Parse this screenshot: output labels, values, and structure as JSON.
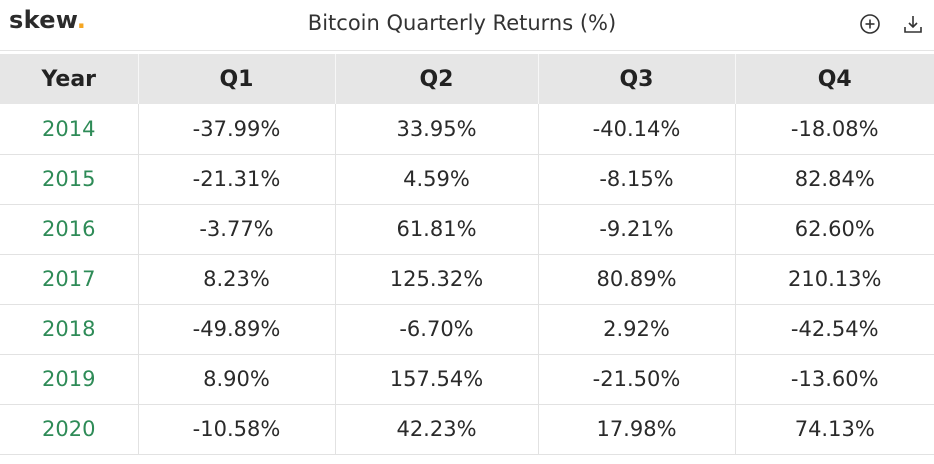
{
  "header": {
    "brand": "skew",
    "brand_dot": ".",
    "title": "Bitcoin Quarterly Returns (%)",
    "icons": [
      "add-circle-icon",
      "download-icon"
    ]
  },
  "colors": {
    "year_text": "#2e8b57",
    "header_row_bg": "#e6e6e6",
    "brand_dot": "#f5a623"
  },
  "chart_data": {
    "type": "table",
    "title": "Bitcoin Quarterly Returns (%)",
    "columns": [
      "Year",
      "Q1",
      "Q2",
      "Q3",
      "Q4"
    ],
    "rows": [
      [
        "2014",
        "-37.99%",
        "33.95%",
        "-40.14%",
        "-18.08%"
      ],
      [
        "2015",
        "-21.31%",
        "4.59%",
        "-8.15%",
        "82.84%"
      ],
      [
        "2016",
        "-3.77%",
        "61.81%",
        "-9.21%",
        "62.60%"
      ],
      [
        "2017",
        "8.23%",
        "125.32%",
        "80.89%",
        "210.13%"
      ],
      [
        "2018",
        "-49.89%",
        "-6.70%",
        "2.92%",
        "-42.54%"
      ],
      [
        "2019",
        "8.90%",
        "157.54%",
        "-21.50%",
        "-13.60%"
      ],
      [
        "2020",
        "-10.58%",
        "42.23%",
        "17.98%",
        "74.13%"
      ]
    ]
  }
}
